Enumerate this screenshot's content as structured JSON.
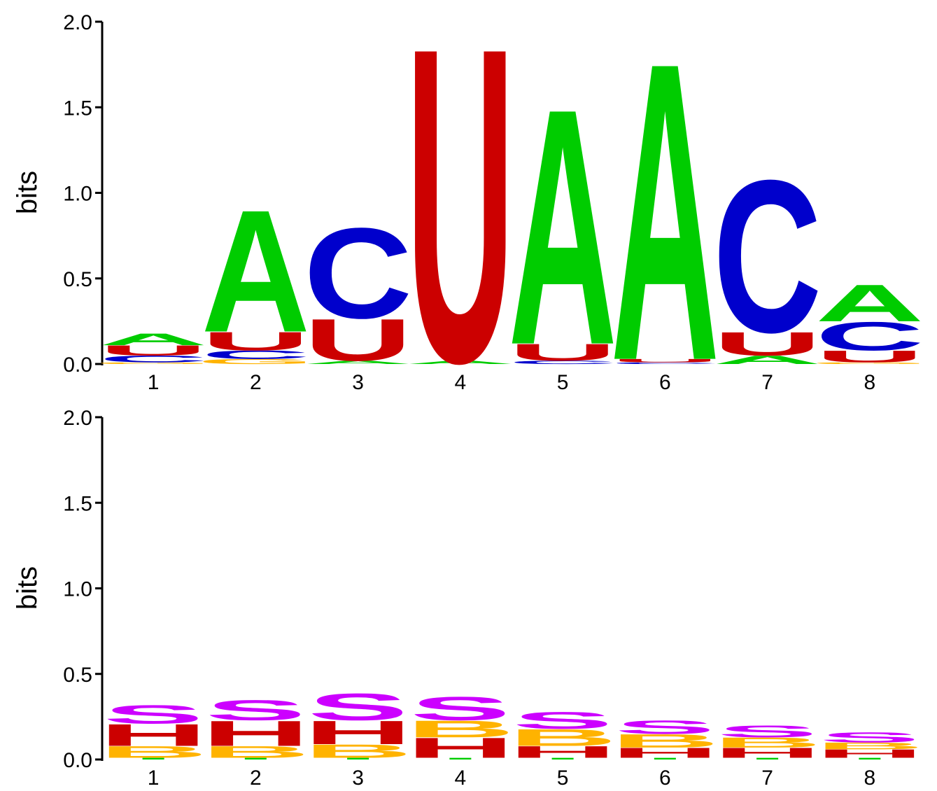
{
  "chart_data": [
    {
      "type": "sequence_logo",
      "ylabel": "bits",
      "ylim": [
        0,
        2.0
      ],
      "yticks": [
        "0.0",
        "0.5",
        "1.0",
        "1.5",
        "2.0"
      ],
      "categories": [
        "1",
        "2",
        "3",
        "4",
        "5",
        "6",
        "7",
        "8"
      ],
      "colors": {
        "A": "#00cc00",
        "C": "#0000cc",
        "G": "#ffb300",
        "U": "#cc0000"
      },
      "positions": [
        [
          {
            "letter": "G",
            "bits": 0.01
          },
          {
            "letter": "C",
            "bits": 0.04
          },
          {
            "letter": "U",
            "bits": 0.06
          },
          {
            "letter": "A",
            "bits": 0.07
          }
        ],
        [
          {
            "letter": "G",
            "bits": 0.03
          },
          {
            "letter": "C",
            "bits": 0.05
          },
          {
            "letter": "U",
            "bits": 0.11
          },
          {
            "letter": "A",
            "bits": 0.73
          }
        ],
        [
          {
            "letter": "A",
            "bits": 0.02
          },
          {
            "letter": "U",
            "bits": 0.25
          },
          {
            "letter": "C",
            "bits": 0.54
          }
        ],
        [
          {
            "letter": "A",
            "bits": 0.02
          },
          {
            "letter": "U",
            "bits": 1.88
          }
        ],
        [
          {
            "letter": "C",
            "bits": 0.02
          },
          {
            "letter": "U",
            "bits": 0.1
          },
          {
            "letter": "A",
            "bits": 1.41
          }
        ],
        [
          {
            "letter": "C",
            "bits": 0.01
          },
          {
            "letter": "U",
            "bits": 0.02
          },
          {
            "letter": "A",
            "bits": 1.78
          }
        ],
        [
          {
            "letter": "A",
            "bits": 0.05
          },
          {
            "letter": "U",
            "bits": 0.14
          },
          {
            "letter": "C",
            "bits": 0.91
          }
        ],
        [
          {
            "letter": "G",
            "bits": 0.01
          },
          {
            "letter": "U",
            "bits": 0.07
          },
          {
            "letter": "C",
            "bits": 0.17
          },
          {
            "letter": "A",
            "bits": 0.22
          }
        ]
      ]
    },
    {
      "type": "sequence_logo",
      "ylabel": "bits",
      "ylim": [
        0,
        2.0
      ],
      "yticks": [
        "0.0",
        "0.5",
        "1.0",
        "1.5",
        "2.0"
      ],
      "categories": [
        "1",
        "2",
        "3",
        "4",
        "5",
        "6",
        "7",
        "8"
      ],
      "colors": {
        "S": "#cc00ff",
        "H": "#cc0000",
        "B": "#ffb300",
        "I": "#00cc00"
      },
      "positions": [
        [
          {
            "letter": "I",
            "bits": 0.01
          },
          {
            "letter": "B",
            "bits": 0.07
          },
          {
            "letter": "H",
            "bits": 0.13
          },
          {
            "letter": "S",
            "bits": 0.11
          }
        ],
        [
          {
            "letter": "I",
            "bits": 0.01
          },
          {
            "letter": "B",
            "bits": 0.07
          },
          {
            "letter": "H",
            "bits": 0.15
          },
          {
            "letter": "S",
            "bits": 0.12
          }
        ],
        [
          {
            "letter": "I",
            "bits": 0.01
          },
          {
            "letter": "B",
            "bits": 0.08
          },
          {
            "letter": "H",
            "bits": 0.14
          },
          {
            "letter": "S",
            "bits": 0.16
          }
        ],
        [
          {
            "letter": "I",
            "bits": 0.01
          },
          {
            "letter": "H",
            "bits": 0.12
          },
          {
            "letter": "B",
            "bits": 0.1
          },
          {
            "letter": "S",
            "bits": 0.14
          }
        ],
        [
          {
            "letter": "I",
            "bits": 0.01
          },
          {
            "letter": "H",
            "bits": 0.07
          },
          {
            "letter": "B",
            "bits": 0.1
          },
          {
            "letter": "S",
            "bits": 0.1
          }
        ],
        [
          {
            "letter": "I",
            "bits": 0.01
          },
          {
            "letter": "H",
            "bits": 0.06
          },
          {
            "letter": "B",
            "bits": 0.08
          },
          {
            "letter": "S",
            "bits": 0.08
          }
        ],
        [
          {
            "letter": "I",
            "bits": 0.01
          },
          {
            "letter": "H",
            "bits": 0.06
          },
          {
            "letter": "B",
            "bits": 0.06
          },
          {
            "letter": "S",
            "bits": 0.07
          }
        ],
        [
          {
            "letter": "I",
            "bits": 0.01
          },
          {
            "letter": "H",
            "bits": 0.05
          },
          {
            "letter": "B",
            "bits": 0.04
          },
          {
            "letter": "S",
            "bits": 0.06
          }
        ]
      ]
    }
  ]
}
